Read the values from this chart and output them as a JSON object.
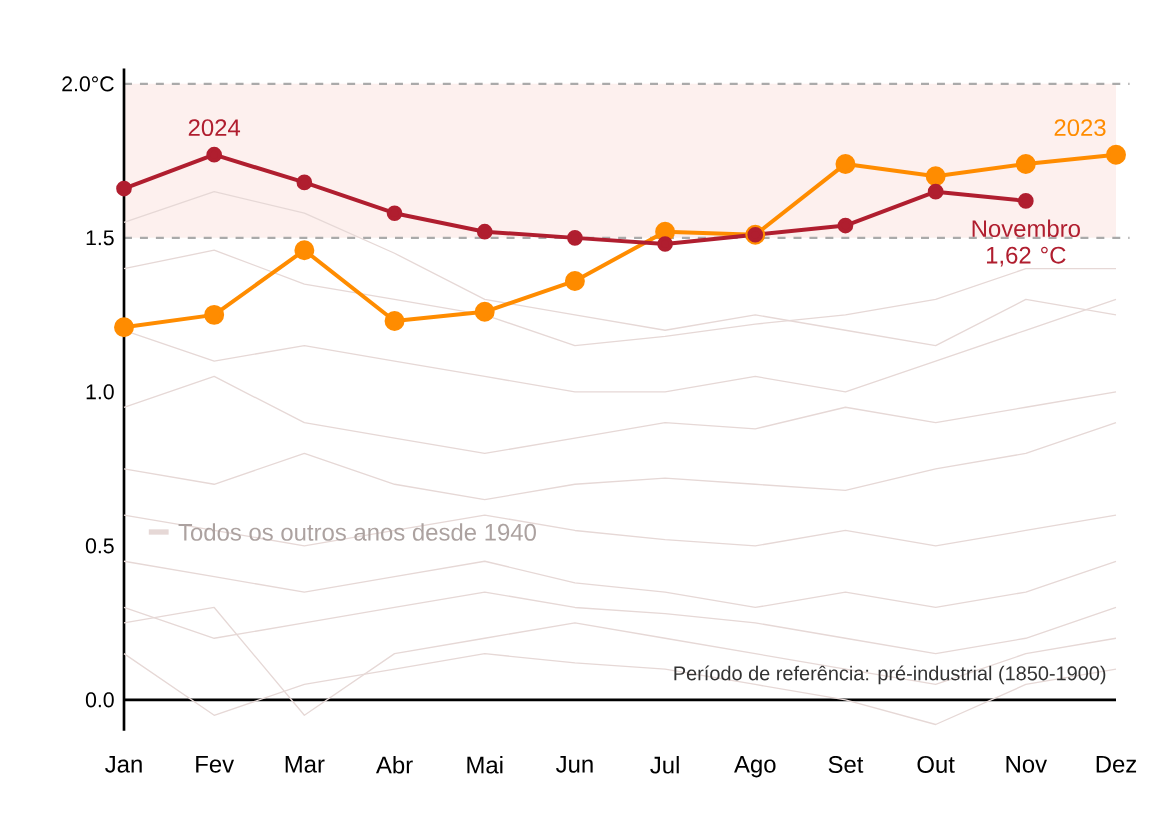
{
  "chart_data": {
    "type": "line",
    "categories": [
      "Jan",
      "Fev",
      "Mar",
      "Abr",
      "Mai",
      "Jun",
      "Jul",
      "Ago",
      "Set",
      "Out",
      "Nov",
      "Dez"
    ],
    "ylim": [
      -0.1,
      2.05
    ],
    "yticks": [
      {
        "value": 0,
        "label": "0.0"
      },
      0.5,
      {
        "value": 1,
        "label": "1.0"
      },
      1.5,
      {
        "value": 2,
        "label": "2.0°C"
      }
    ],
    "line_style": "solid",
    "bands": [
      {
        "axis": "y",
        "from": 1.5,
        "to": 2.0,
        "color": "#fdf0ee"
      }
    ],
    "ref_lines": [
      {
        "axis": "y",
        "value": 1.5,
        "color": "#aaaaaa",
        "line_style": "dashed"
      },
      {
        "axis": "y",
        "value": 2.0,
        "color": "#aaaaaa",
        "line_style": "dashed"
      }
    ],
    "series": [
      {
        "name": "Todos os outros anos desde 1940",
        "color": "#e6d8d6",
        "marker": "none",
        "values": [
          1.55,
          1.65,
          1.58,
          1.45,
          1.3,
          1.25,
          1.2,
          1.25,
          1.2,
          1.15,
          1.3,
          1.25
        ]
      },
      {
        "color": "#e6d8d6",
        "marker": "none",
        "values": [
          1.4,
          1.46,
          1.35,
          1.3,
          1.25,
          1.15,
          1.18,
          1.22,
          1.25,
          1.3,
          1.4,
          1.4
        ]
      },
      {
        "color": "#e6d8d6",
        "marker": "none",
        "values": [
          1.2,
          1.1,
          1.15,
          1.1,
          1.05,
          1.0,
          1.0,
          1.05,
          1.0,
          1.1,
          1.2,
          1.3
        ]
      },
      {
        "color": "#e6d8d6",
        "marker": "none",
        "values": [
          0.95,
          1.05,
          0.9,
          0.85,
          0.8,
          0.85,
          0.9,
          0.88,
          0.95,
          0.9,
          0.95,
          1.0
        ]
      },
      {
        "color": "#e6d8d6",
        "marker": "none",
        "values": [
          0.75,
          0.7,
          0.8,
          0.7,
          0.65,
          0.7,
          0.72,
          0.7,
          0.68,
          0.75,
          0.8,
          0.9
        ]
      },
      {
        "color": "#e6d8d6",
        "marker": "none",
        "values": [
          0.6,
          0.55,
          0.5,
          0.55,
          0.6,
          0.55,
          0.52,
          0.5,
          0.55,
          0.5,
          0.55,
          0.6
        ]
      },
      {
        "color": "#e6d8d6",
        "marker": "none",
        "values": [
          0.45,
          0.4,
          0.35,
          0.4,
          0.45,
          0.38,
          0.35,
          0.3,
          0.35,
          0.3,
          0.35,
          0.45
        ]
      },
      {
        "color": "#e6d8d6",
        "marker": "none",
        "values": [
          0.3,
          0.2,
          0.25,
          0.3,
          0.35,
          0.3,
          0.28,
          0.25,
          0.2,
          0.15,
          0.2,
          0.3
        ]
      },
      {
        "color": "#e6d8d6",
        "marker": "none",
        "values": [
          0.15,
          -0.05,
          0.05,
          0.1,
          0.15,
          0.12,
          0.1,
          0.05,
          0.0,
          -0.08,
          0.05,
          0.1
        ]
      },
      {
        "color": "#e6d8d6",
        "marker": "none",
        "values": [
          0.25,
          0.3,
          -0.05,
          0.15,
          0.2,
          0.25,
          0.2,
          0.15,
          0.1,
          0.05,
          0.15,
          0.2
        ]
      },
      {
        "name": "2023",
        "color": "#ff8c00",
        "marker": "circle",
        "values": [
          1.21,
          1.25,
          1.46,
          1.23,
          1.26,
          1.36,
          1.52,
          1.51,
          1.74,
          1.7,
          1.74,
          1.77
        ]
      },
      {
        "name": "2024",
        "color": "#b01e2f",
        "marker": "circle",
        "values": [
          1.66,
          1.77,
          1.68,
          1.58,
          1.52,
          1.5,
          1.48,
          1.51,
          1.54,
          1.65,
          1.62,
          null
        ]
      }
    ],
    "annotations": [
      {
        "text": "Novembro 1,62 °C",
        "x": "Nov",
        "y": 1.62
      },
      "Período de referência: pré-industrial (1850-1900)"
    ]
  }
}
